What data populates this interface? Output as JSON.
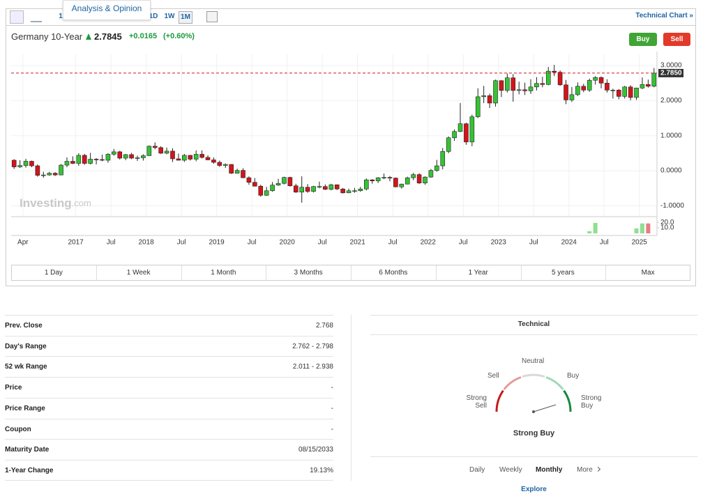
{
  "toolbar": {
    "buttons": [
      "1",
      "1D",
      "1W",
      "1M"
    ],
    "popup": "Analysis & Opinion",
    "link": "Technical Chart »"
  },
  "header": {
    "name": "Germany 10-Year",
    "price": "2.7845",
    "change": "+0.0165",
    "change_pct": "(+0.60%)",
    "buy": "Buy",
    "sell": "Sell"
  },
  "chart_data": {
    "type": "candlestick",
    "up_color": "#36c236",
    "down_color": "#d3141b",
    "grid": true,
    "watermark": [
      "Investing",
      ".com"
    ],
    "last_price": {
      "value": 2.785,
      "label": "2.7850"
    },
    "x": [
      "2016-02",
      "2016-03",
      "2016-04",
      "2016-05",
      "2016-06",
      "2016-07",
      "2016-08",
      "2016-09",
      "2016-10",
      "2016-11",
      "2016-12",
      "2017-01",
      "2017-02",
      "2017-03",
      "2017-04",
      "2017-05",
      "2017-06",
      "2017-07",
      "2017-08",
      "2017-09",
      "2017-10",
      "2017-11",
      "2017-12",
      "2018-01",
      "2018-02",
      "2018-03",
      "2018-04",
      "2018-05",
      "2018-06",
      "2018-07",
      "2018-08",
      "2018-09",
      "2018-10",
      "2018-11",
      "2018-12",
      "2019-01",
      "2019-02",
      "2019-03",
      "2019-04",
      "2019-05",
      "2019-06",
      "2019-07",
      "2019-08",
      "2019-09",
      "2019-10",
      "2019-11",
      "2019-12",
      "2020-01",
      "2020-02",
      "2020-03",
      "2020-04",
      "2020-05",
      "2020-06",
      "2020-07",
      "2020-08",
      "2020-09",
      "2020-10",
      "2020-11",
      "2020-12",
      "2021-01",
      "2021-02",
      "2021-03",
      "2021-04",
      "2021-05",
      "2021-06",
      "2021-07",
      "2021-08",
      "2021-09",
      "2021-10",
      "2021-11",
      "2021-12",
      "2022-01",
      "2022-02",
      "2022-03",
      "2022-04",
      "2022-05",
      "2022-06",
      "2022-07",
      "2022-08",
      "2022-09",
      "2022-10",
      "2022-11",
      "2022-12",
      "2023-01",
      "2023-02",
      "2023-03",
      "2023-04",
      "2023-05",
      "2023-06",
      "2023-07",
      "2023-08",
      "2023-09",
      "2023-10",
      "2023-11",
      "2023-12",
      "2024-01",
      "2024-02",
      "2024-03",
      "2024-04",
      "2024-05",
      "2024-06",
      "2024-07",
      "2024-08",
      "2024-09",
      "2024-10",
      "2024-11",
      "2024-12",
      "2025-01",
      "2025-02",
      "2025-03"
    ],
    "open": [
      0.3,
      0.11,
      0.15,
      0.27,
      0.14,
      -0.13,
      -0.12,
      -0.07,
      -0.12,
      0.16,
      0.27,
      0.21,
      0.44,
      0.21,
      0.33,
      0.32,
      0.3,
      0.47,
      0.54,
      0.36,
      0.46,
      0.36,
      0.37,
      0.43,
      0.7,
      0.66,
      0.5,
      0.56,
      0.34,
      0.3,
      0.44,
      0.33,
      0.47,
      0.38,
      0.31,
      0.24,
      0.15,
      0.18,
      -0.07,
      0.01,
      -0.2,
      -0.33,
      -0.44,
      -0.7,
      -0.57,
      -0.41,
      -0.36,
      -0.19,
      -0.43,
      -0.61,
      -0.47,
      -0.59,
      -0.45,
      -0.45,
      -0.53,
      -0.4,
      -0.52,
      -0.63,
      -0.57,
      -0.57,
      -0.52,
      -0.26,
      -0.29,
      -0.2,
      -0.19,
      -0.21,
      -0.46,
      -0.38,
      -0.2,
      -0.11,
      -0.35,
      -0.18,
      0.01,
      0.14,
      0.55,
      0.94,
      1.12,
      1.34,
      0.82,
      1.54,
      2.11,
      2.14,
      1.93,
      2.57,
      2.29,
      2.65,
      2.29,
      2.31,
      2.28,
      2.39,
      2.49,
      2.46,
      2.84,
      2.81,
      2.45,
      2.02,
      2.17,
      2.41,
      2.3,
      2.58,
      2.66,
      2.5,
      2.3,
      2.3,
      2.12,
      2.39,
      2.09,
      2.36,
      2.46,
      2.41
    ],
    "high": [
      0.33,
      0.3,
      0.34,
      0.29,
      0.18,
      -0.03,
      -0.03,
      -0.04,
      0.19,
      0.38,
      0.41,
      0.5,
      0.48,
      0.51,
      0.36,
      0.46,
      0.5,
      0.62,
      0.57,
      0.48,
      0.51,
      0.43,
      0.47,
      0.72,
      0.81,
      0.7,
      0.66,
      0.64,
      0.49,
      0.48,
      0.45,
      0.58,
      0.58,
      0.44,
      0.38,
      0.29,
      0.21,
      0.19,
      0.06,
      0.07,
      -0.16,
      -0.21,
      -0.4,
      -0.46,
      -0.32,
      -0.23,
      -0.17,
      -0.17,
      -0.37,
      -0.16,
      -0.38,
      -0.43,
      -0.31,
      -0.39,
      -0.37,
      -0.39,
      -0.49,
      -0.51,
      -0.49,
      -0.46,
      -0.22,
      -0.24,
      -0.18,
      -0.08,
      -0.15,
      -0.19,
      -0.37,
      -0.17,
      -0.06,
      -0.07,
      -0.16,
      0.05,
      0.31,
      0.65,
      0.98,
      1.18,
      1.93,
      1.37,
      1.6,
      2.35,
      2.42,
      2.2,
      2.6,
      2.58,
      2.77,
      2.76,
      2.54,
      2.51,
      2.61,
      2.67,
      2.68,
      2.96,
      3.02,
      2.86,
      2.59,
      2.39,
      2.52,
      2.48,
      2.63,
      2.7,
      2.69,
      2.61,
      2.34,
      2.33,
      2.42,
      2.44,
      2.37,
      2.66,
      2.6,
      2.93
    ],
    "low": [
      0.05,
      0.08,
      0.09,
      0.1,
      -0.17,
      -0.2,
      -0.14,
      -0.15,
      -0.13,
      0.1,
      0.19,
      0.14,
      0.17,
      0.18,
      0.18,
      0.27,
      0.23,
      0.43,
      0.32,
      0.3,
      0.33,
      0.28,
      0.29,
      0.42,
      0.61,
      0.48,
      0.47,
      0.25,
      0.29,
      0.25,
      0.29,
      0.27,
      0.35,
      0.3,
      0.2,
      0.11,
      0.08,
      -0.09,
      -0.08,
      -0.21,
      -0.4,
      -0.45,
      -0.74,
      -0.72,
      -0.6,
      -0.43,
      -0.39,
      -0.45,
      -0.63,
      -0.91,
      -0.63,
      -0.62,
      -0.5,
      -0.55,
      -0.56,
      -0.55,
      -0.65,
      -0.64,
      -0.63,
      -0.6,
      -0.56,
      -0.37,
      -0.35,
      -0.24,
      -0.3,
      -0.47,
      -0.51,
      -0.39,
      -0.27,
      -0.38,
      -0.4,
      -0.2,
      -0.03,
      0.04,
      0.5,
      0.85,
      1.1,
      0.74,
      0.7,
      1.5,
      1.93,
      1.79,
      1.83,
      2.1,
      2.23,
      1.97,
      2.18,
      2.16,
      2.19,
      2.29,
      2.38,
      2.44,
      2.7,
      2.42,
      1.9,
      1.96,
      2.13,
      2.24,
      2.25,
      2.46,
      2.35,
      2.23,
      2.06,
      2.04,
      2.06,
      2.01,
      2.02,
      2.33,
      2.37,
      2.38
    ],
    "close": [
      0.11,
      0.15,
      0.27,
      0.14,
      -0.13,
      -0.12,
      -0.07,
      -0.12,
      0.16,
      0.27,
      0.21,
      0.44,
      0.21,
      0.33,
      0.32,
      0.3,
      0.47,
      0.54,
      0.36,
      0.46,
      0.36,
      0.37,
      0.43,
      0.7,
      0.66,
      0.5,
      0.56,
      0.34,
      0.3,
      0.44,
      0.33,
      0.47,
      0.38,
      0.31,
      0.24,
      0.15,
      0.18,
      -0.07,
      0.01,
      -0.2,
      -0.33,
      -0.44,
      -0.7,
      -0.57,
      -0.41,
      -0.36,
      -0.19,
      -0.43,
      -0.61,
      -0.47,
      -0.59,
      -0.45,
      -0.45,
      -0.53,
      -0.4,
      -0.52,
      -0.63,
      -0.57,
      -0.57,
      -0.52,
      -0.26,
      -0.29,
      -0.2,
      -0.19,
      -0.21,
      -0.46,
      -0.38,
      -0.2,
      -0.11,
      -0.35,
      -0.18,
      0.01,
      0.14,
      0.55,
      0.94,
      1.12,
      1.34,
      0.82,
      1.54,
      2.11,
      2.14,
      1.93,
      2.57,
      2.29,
      2.65,
      2.29,
      2.31,
      2.28,
      2.39,
      2.49,
      2.46,
      2.84,
      2.81,
      2.45,
      2.02,
      2.17,
      2.41,
      2.3,
      2.58,
      2.66,
      2.5,
      2.3,
      2.3,
      2.12,
      2.39,
      2.09,
      2.36,
      2.46,
      2.41,
      2.7845
    ],
    "xlim": [
      "2016-02",
      "2025-04"
    ],
    "xticks": [
      {
        "value": "2016-04",
        "label": "Apr"
      },
      {
        "value": "2017-01",
        "label": "2017"
      },
      {
        "value": "2017-07",
        "label": "Jul"
      },
      {
        "value": "2018-01",
        "label": "2018"
      },
      {
        "value": "2018-07",
        "label": "Jul"
      },
      {
        "value": "2019-01",
        "label": "2019"
      },
      {
        "value": "2019-07",
        "label": "Jul"
      },
      {
        "value": "2020-01",
        "label": "2020"
      },
      {
        "value": "2020-07",
        "label": "Jul"
      },
      {
        "value": "2021-01",
        "label": "2021"
      },
      {
        "value": "2021-07",
        "label": "Jul"
      },
      {
        "value": "2022-01",
        "label": "2022"
      },
      {
        "value": "2022-07",
        "label": "Jul"
      },
      {
        "value": "2023-01",
        "label": "2023"
      },
      {
        "value": "2023-07",
        "label": "Jul"
      },
      {
        "value": "2024-01",
        "label": "2024"
      },
      {
        "value": "2024-07",
        "label": "Jul"
      },
      {
        "value": "2025-01",
        "label": "2025"
      }
    ],
    "ylim": [
      -1.29,
      3.32
    ],
    "yticks": [
      {
        "value": -1,
        "label": "-1.0000"
      },
      {
        "value": 0,
        "label": "0.0000"
      },
      {
        "value": 1,
        "label": "1.0000"
      },
      {
        "value": 2,
        "label": "2.0000"
      },
      {
        "value": 3,
        "label": "3.0000"
      }
    ],
    "volume": {
      "x": [
        "2024-04",
        "2024-05",
        "2024-12",
        "2025-01",
        "2025-02"
      ],
      "values": [
        4,
        19,
        9,
        18,
        18
      ],
      "ylim": [
        0,
        29
      ],
      "yticks": [
        {
          "value": 10,
          "label": "10.0"
        },
        {
          "value": 20,
          "label": "20.0"
        }
      ]
    }
  },
  "ranges": [
    "1 Day",
    "1 Week",
    "1 Month",
    "3 Months",
    "6 Months",
    "1 Year",
    "5 years",
    "Max"
  ],
  "stats": {
    "rows": [
      [
        "Prev. Close",
        "2.768"
      ],
      [
        "Day's Range",
        "2.762 - 2.798"
      ],
      [
        "52 wk Range",
        "2.011 - 2.938"
      ],
      [
        "Price",
        "-"
      ],
      [
        "Price Range",
        "-"
      ],
      [
        "Coupon",
        "-"
      ],
      [
        "Maturity Date",
        "08/15/2033"
      ],
      [
        "1-Year Change",
        "19.13%"
      ]
    ]
  },
  "technical": {
    "title": "Technical",
    "gauge": {
      "strong_sell": "Strong Sell",
      "sell": "Sell",
      "neutral": "Neutral",
      "buy": "Buy",
      "strong_buy": "Strong Buy"
    },
    "summary": "Strong Buy",
    "tabs": [
      "Daily",
      "Weekly",
      "Monthly",
      "More"
    ],
    "explore": "Explore"
  }
}
